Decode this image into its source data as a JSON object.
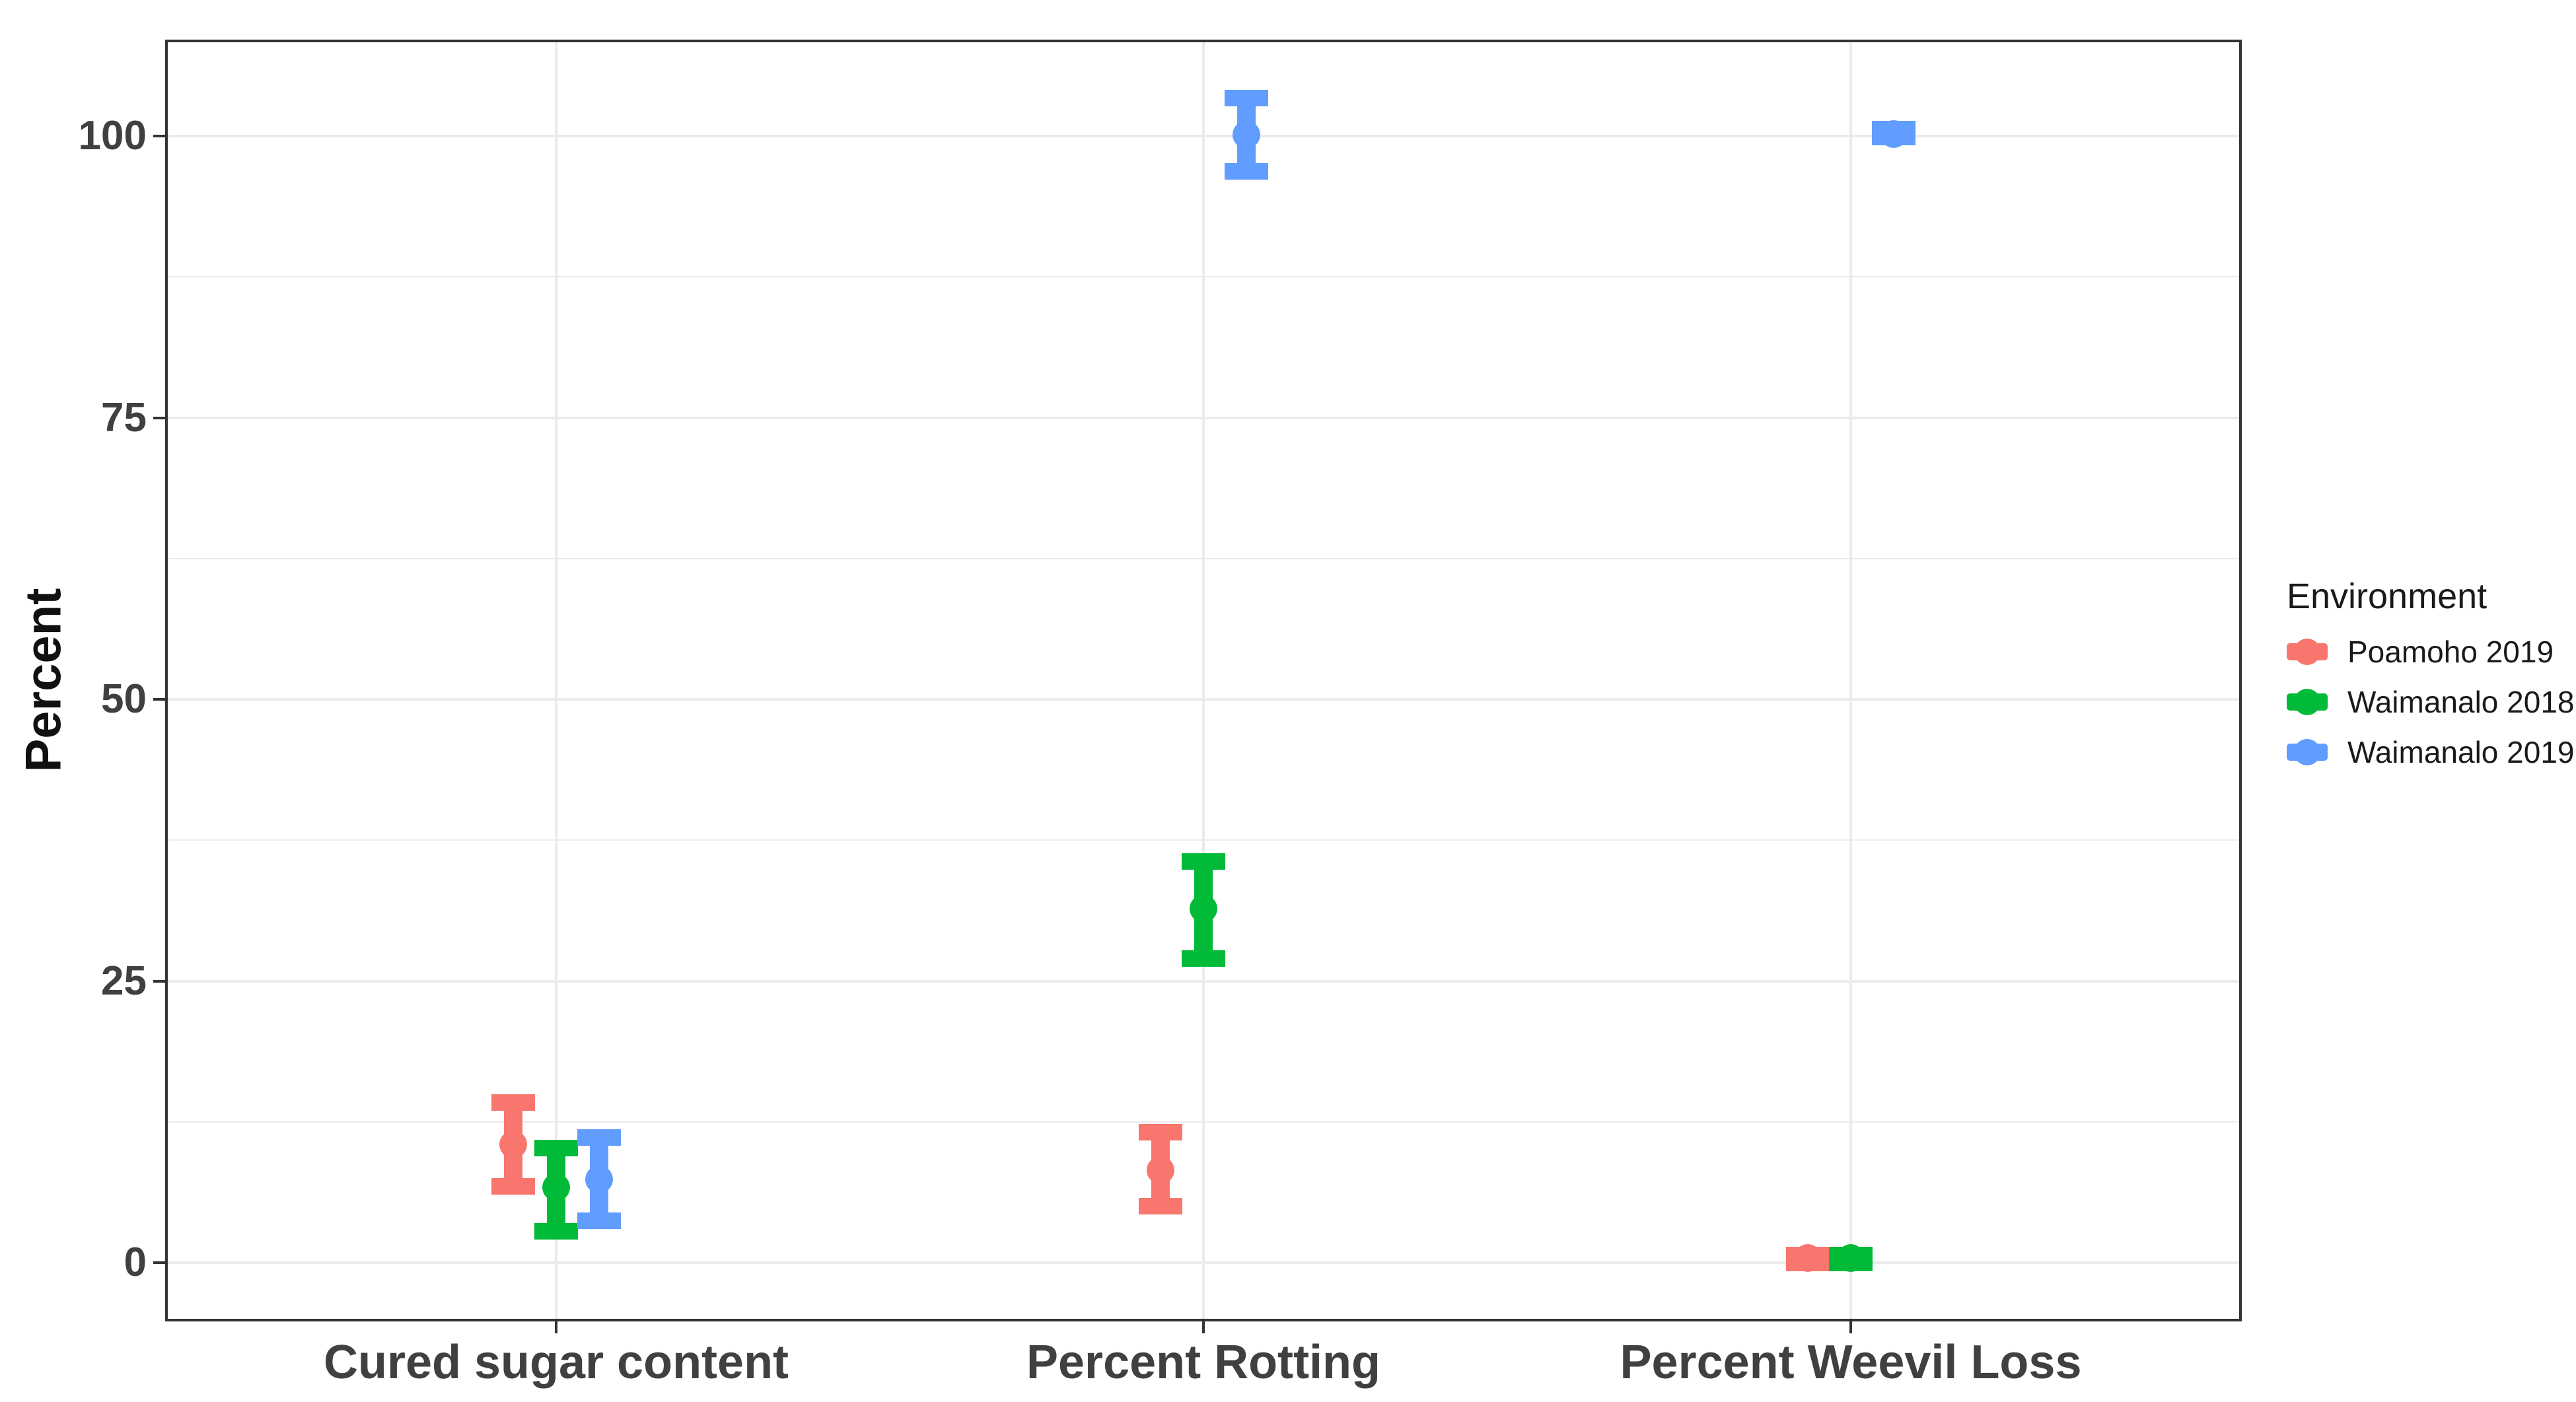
{
  "page": {
    "background": "#ffffff"
  },
  "colors": {
    "panel_border": "#333333",
    "gridline": "#ebebeb",
    "axis_text": "#404040",
    "axis_title": "#111111",
    "legend_text": "#1a1a1a",
    "poamoho_2019": "#F8766D",
    "waimanalo_2018": "#00BA38",
    "waimanalo_2019": "#619CFF"
  },
  "chart_data": {
    "type": "pointrange",
    "title": "",
    "xlabel": "",
    "ylabel": "Percent",
    "categories": [
      "Cured sugar content",
      "Percent Rotting",
      "Percent Weevil Loss"
    ],
    "y_ticks": [
      0,
      25,
      50,
      75,
      100
    ],
    "ylim": [
      -5.1,
      108.45
    ],
    "grid": {
      "horizontal": "major+minor",
      "vertical": "major-only"
    },
    "legend": {
      "title": "Environment",
      "position": "right"
    },
    "series": [
      {
        "name": "Poamoho 2019",
        "color": "#F8766D",
        "points": [
          {
            "category": "Cured sugar content",
            "mean": 10.5,
            "lo": 6.8,
            "hi": 14.2
          },
          {
            "category": "Percent Rotting",
            "mean": 8.2,
            "lo": 5.0,
            "hi": 11.6
          },
          {
            "category": "Percent Weevil Loss",
            "mean": 0.4,
            "lo": 0.0,
            "hi": 0.7
          }
        ]
      },
      {
        "name": "Waimanalo 2018",
        "color": "#00BA38",
        "points": [
          {
            "category": "Cured sugar content",
            "mean": 6.7,
            "lo": 2.8,
            "hi": 10.2
          },
          {
            "category": "Percent Rotting",
            "mean": 31.4,
            "lo": 27.0,
            "hi": 35.6
          },
          {
            "category": "Percent Weevil Loss",
            "mean": 0.4,
            "lo": 0.0,
            "hi": 0.7
          }
        ]
      },
      {
        "name": "Waimanalo 2019",
        "color": "#619CFF",
        "points": [
          {
            "category": "Cured sugar content",
            "mean": 7.4,
            "lo": 3.7,
            "hi": 11.1
          },
          {
            "category": "Percent Rotting",
            "mean": 100.1,
            "lo": 96.9,
            "hi": 103.4
          },
          {
            "category": "Percent Weevil Loss",
            "mean": 100.2,
            "lo": 99.9,
            "hi": 100.6
          }
        ]
      }
    ]
  }
}
